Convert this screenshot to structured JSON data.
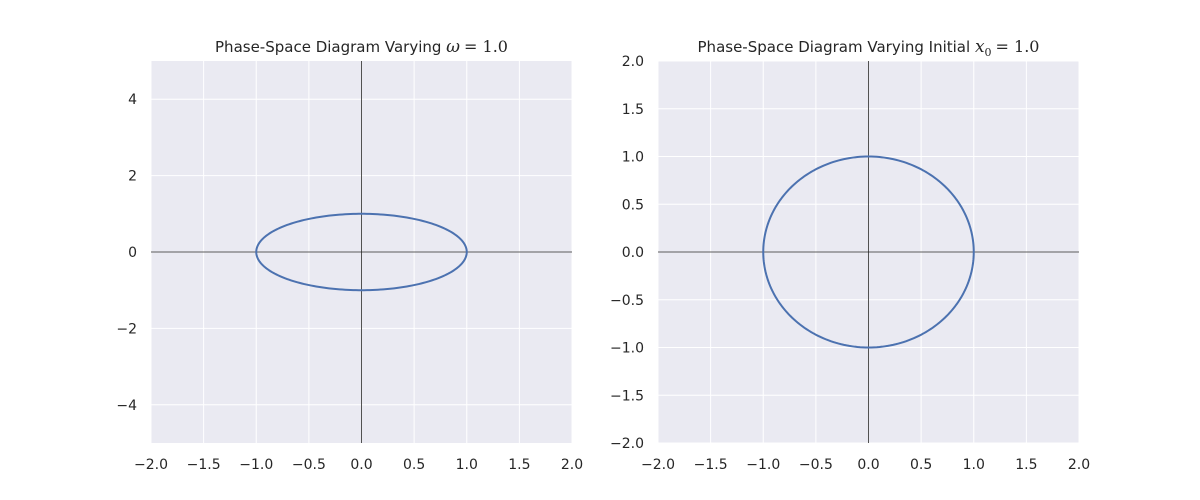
{
  "chart_data": [
    {
      "type": "line",
      "title_prefix": "Phase-Space Diagram Varying ",
      "title_math_symbol": "ω",
      "title_math_value": "= 1.0",
      "xlabel": "",
      "ylabel": "",
      "xlim": [
        -2.0,
        2.0
      ],
      "ylim": [
        -5,
        5
      ],
      "xticks": [
        -2.0,
        -1.5,
        -1.0,
        -0.5,
        0.0,
        0.5,
        1.0,
        1.5,
        2.0
      ],
      "xtick_labels": [
        "−2.0",
        "−1.5",
        "−1.0",
        "−0.5",
        "0.0",
        "0.5",
        "1.0",
        "1.5",
        "2.0"
      ],
      "yticks": [
        -4,
        -2,
        0,
        2,
        4
      ],
      "ytick_labels": [
        "−4",
        "−2",
        "0",
        "2",
        "4"
      ],
      "grid": true,
      "axis_lines": [
        {
          "orientation": "horizontal",
          "value": 0
        },
        {
          "orientation": "vertical",
          "value": 0
        }
      ],
      "series": [
        {
          "curve": "ellipse",
          "center": [
            0,
            0
          ],
          "radius_x": 1.0,
          "radius_y": 1.0,
          "color": "#4c72b0"
        }
      ]
    },
    {
      "type": "line",
      "title_prefix": "Phase-Space Diagram Varying Initial ",
      "title_math_symbol": "x",
      "title_math_subscript": "0",
      "title_math_value": "= 1.0",
      "xlabel": "",
      "ylabel": "",
      "xlim": [
        -2.0,
        2.0
      ],
      "ylim": [
        -2.0,
        2.0
      ],
      "xticks": [
        -2.0,
        -1.5,
        -1.0,
        -0.5,
        0.0,
        0.5,
        1.0,
        1.5,
        2.0
      ],
      "xtick_labels": [
        "−2.0",
        "−1.5",
        "−1.0",
        "−0.5",
        "0.0",
        "0.5",
        "1.0",
        "1.5",
        "2.0"
      ],
      "yticks": [
        -2.0,
        -1.5,
        -1.0,
        -0.5,
        0.0,
        0.5,
        1.0,
        1.5,
        2.0
      ],
      "ytick_labels": [
        "−2.0",
        "−1.5",
        "−1.0",
        "−0.5",
        "0.0",
        "0.5",
        "1.0",
        "1.5",
        "2.0"
      ],
      "grid": true,
      "axis_lines": [
        {
          "orientation": "horizontal",
          "value": 0
        },
        {
          "orientation": "vertical",
          "value": 0
        }
      ],
      "series": [
        {
          "curve": "ellipse",
          "center": [
            0,
            0
          ],
          "radius_x": 1.0,
          "radius_y": 1.0,
          "color": "#4c72b0"
        }
      ]
    }
  ],
  "style": {
    "axes_background": "#eaeaf2",
    "grid_color": "#ffffff",
    "axis_line_color": "#262626",
    "text_color": "#262626"
  }
}
